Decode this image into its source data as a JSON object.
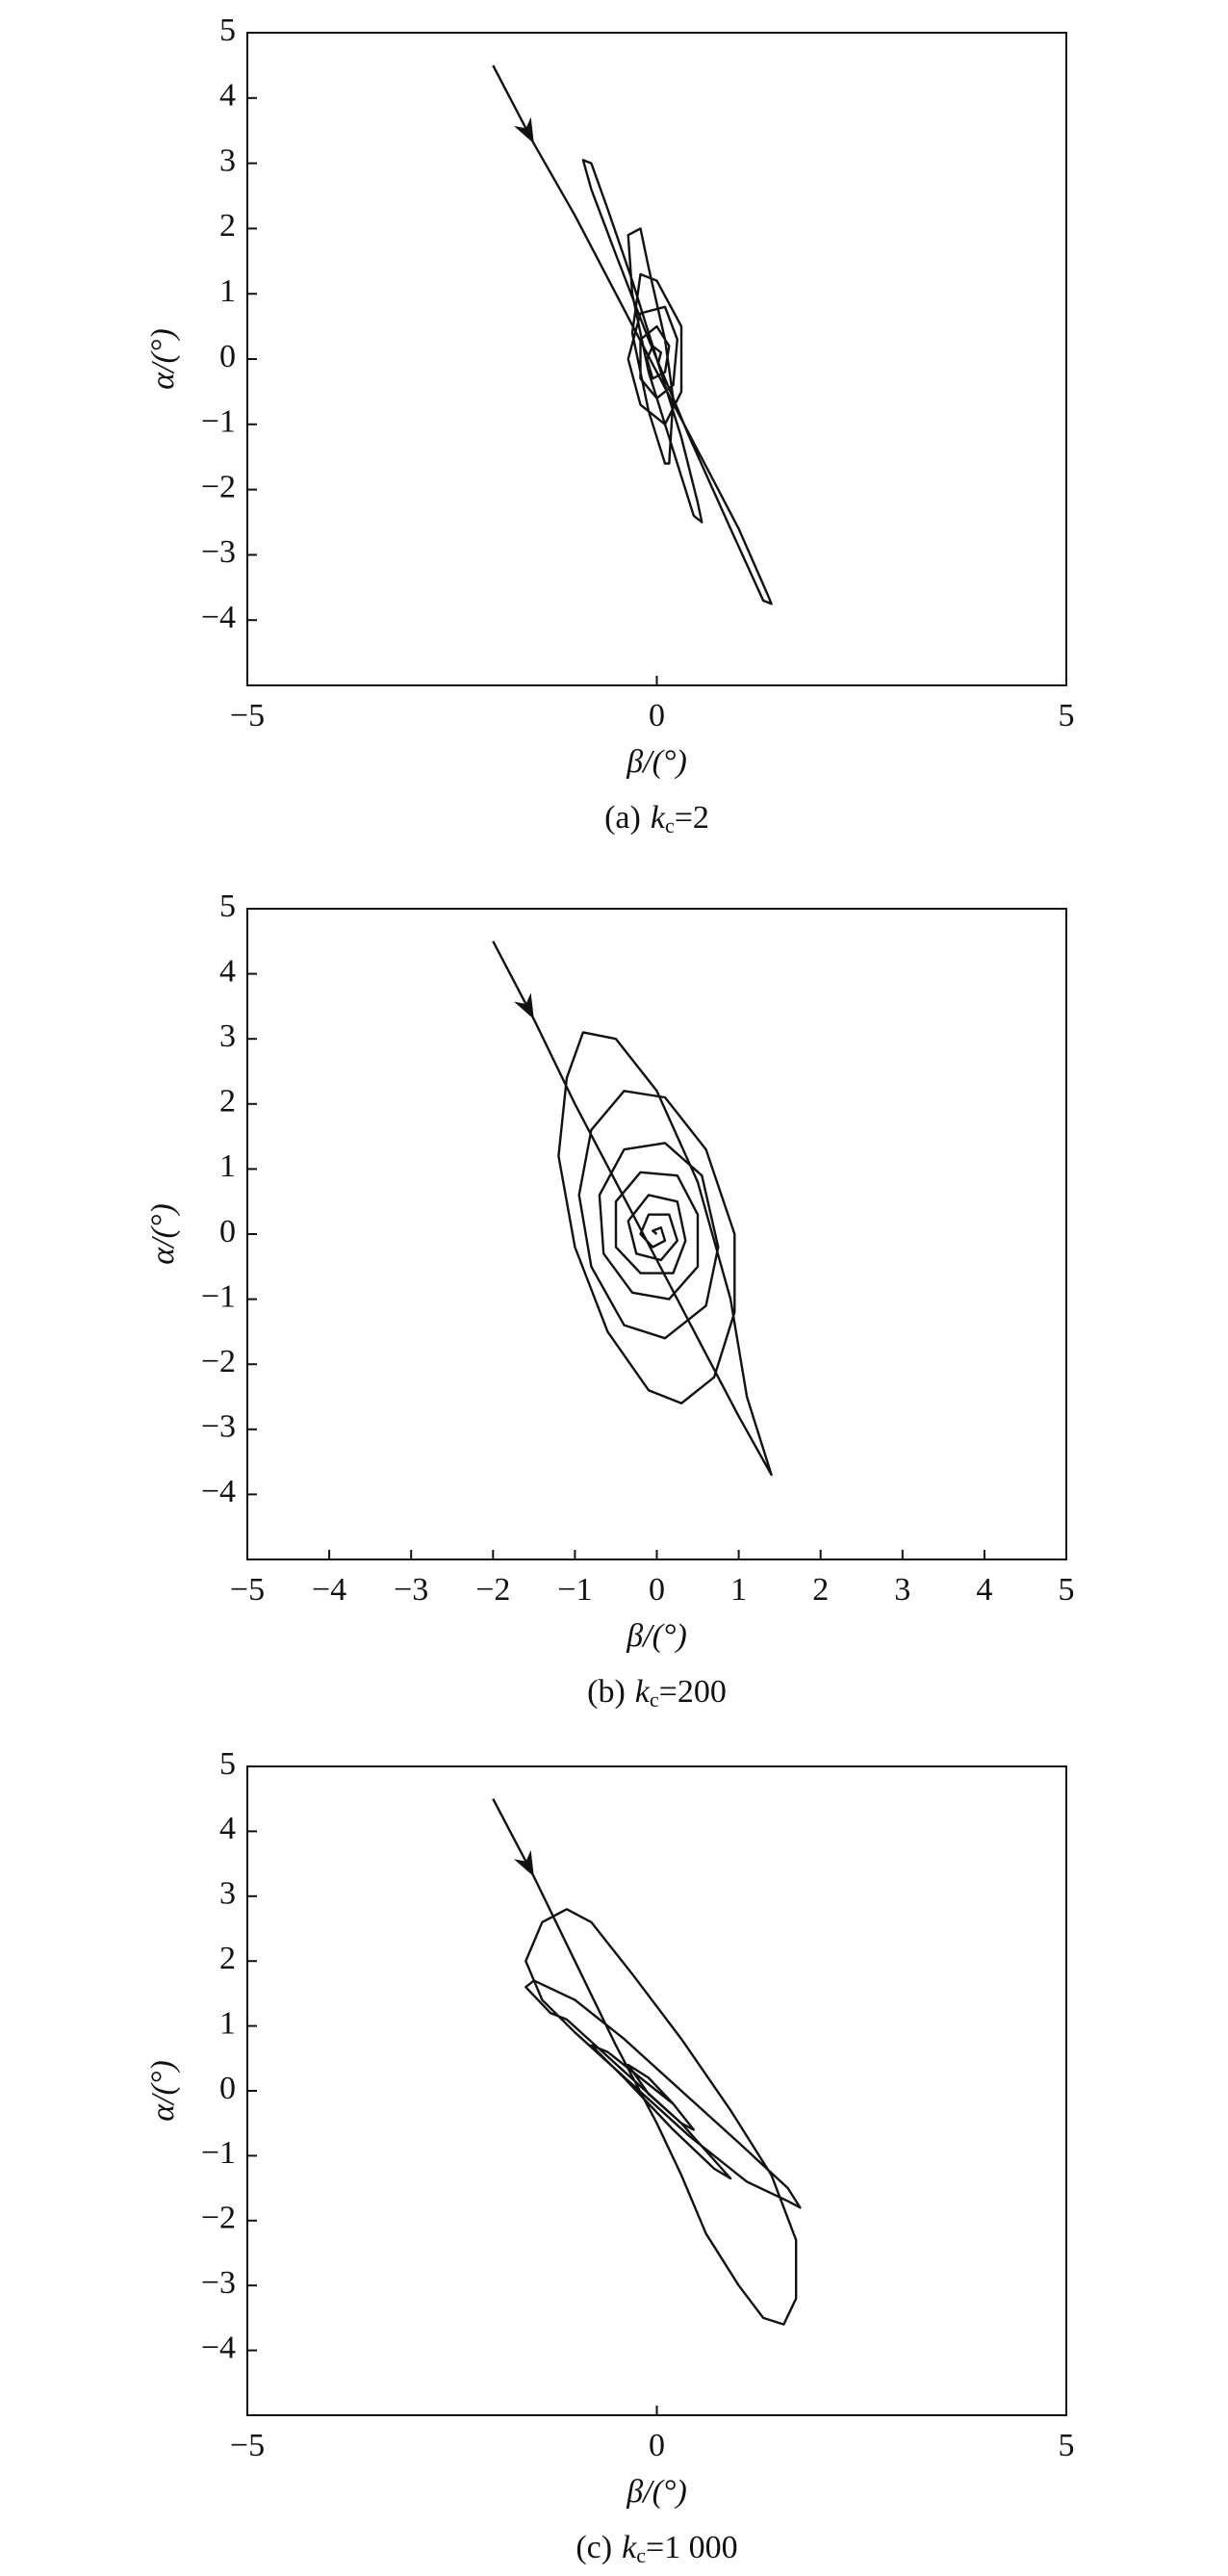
{
  "chart_data": [
    {
      "type": "line",
      "xlabel": "β/(°)",
      "ylabel": "α/(°)",
      "caption": {
        "prefix": "(a)",
        "symbol": "k",
        "subscript": "c",
        "suffix": "=2"
      },
      "xlim": [
        -5,
        5
      ],
      "ylim": [
        -5,
        5
      ],
      "xticks": [
        {
          "value": -5,
          "label": "−5"
        },
        0,
        5
      ],
      "yticks": [
        {
          "value": -4,
          "label": "−4"
        },
        {
          "value": -3,
          "label": "−3"
        },
        {
          "value": -2,
          "label": "−2"
        },
        {
          "value": -1,
          "label": "−1"
        },
        0,
        1,
        2,
        3,
        4,
        5
      ],
      "series": [
        {
          "color": "#111111",
          "x": [
            -2.0,
            -1.5,
            -1.0,
            -0.5,
            0,
            0.5,
            1.0,
            1.35,
            1.4,
            1.3,
            0.9,
            0.4,
            -0.1,
            -0.5,
            -0.8,
            -0.9,
            -0.8,
            -0.6,
            -0.3,
            0,
            0.3,
            0.5,
            0.55,
            0.45,
            0.2,
            -0.1,
            -0.3,
            -0.35,
            -0.2,
            -0.1,
            0.1,
            0.2,
            0.15,
            0.1,
            -0.1,
            -0.3,
            -0.2,
            0,
            0.3,
            0.3,
            0.1,
            -0.2,
            -0.35,
            -0.2,
            0.1,
            0.25,
            0.2,
            0,
            -0.2,
            -0.2,
            0,
            0.15,
            0.1,
            -0.05,
            -0.12,
            -0.05,
            0.05,
            0.02,
            0
          ],
          "values": [
            4.5,
            3.3,
            2.2,
            1.0,
            -0.2,
            -1.4,
            -2.6,
            -3.6,
            -3.75,
            -3.7,
            -2.6,
            -1.2,
            0.3,
            1.6,
            2.6,
            3.05,
            3.0,
            2.3,
            1.2,
            0,
            -1.2,
            -2.2,
            -2.5,
            -2.4,
            -1.4,
            -0.2,
            1.0,
            1.9,
            2.0,
            1.4,
            0.3,
            -0.6,
            -1.6,
            -1.6,
            -0.8,
            0.4,
            1.3,
            1.2,
            0.5,
            -0.5,
            -1.0,
            -0.7,
            0,
            0.7,
            0.8,
            0.3,
            -0.4,
            -0.6,
            -0.3,
            0.3,
            0.5,
            0.2,
            -0.2,
            -0.3,
            0,
            0.2,
            0.1,
            -0.05,
            0
          ]
        }
      ]
    },
    {
      "type": "line",
      "xlabel": "β/(°)",
      "ylabel": "α/(°)",
      "caption": {
        "prefix": "(b)",
        "symbol": "k",
        "subscript": "c",
        "suffix": "=200"
      },
      "xlim": [
        -5,
        5
      ],
      "ylim": [
        -5,
        5
      ],
      "xticks": [
        {
          "value": -5,
          "label": "−5"
        },
        {
          "value": -4,
          "label": "−4"
        },
        {
          "value": -3,
          "label": "−3"
        },
        {
          "value": -2,
          "label": "−2"
        },
        {
          "value": -1,
          "label": "−1"
        },
        0,
        1,
        2,
        3,
        4,
        5
      ],
      "yticks": [
        {
          "value": -4,
          "label": "−4"
        },
        {
          "value": -3,
          "label": "−3"
        },
        {
          "value": -2,
          "label": "−2"
        },
        {
          "value": -1,
          "label": "−1"
        },
        0,
        1,
        2,
        3,
        4,
        5
      ],
      "series": [
        {
          "color": "#111111",
          "x": [
            -2.0,
            -1.5,
            -1.0,
            -0.5,
            0,
            0.5,
            1.0,
            1.4,
            1.1,
            0.9,
            0.5,
            0,
            -0.5,
            -0.9,
            -1.1,
            -1.2,
            -1.0,
            -0.6,
            -0.1,
            0.3,
            0.7,
            0.95,
            0.95,
            0.6,
            0.1,
            -0.4,
            -0.8,
            -0.95,
            -0.8,
            -0.4,
            0.1,
            0.6,
            0.75,
            0.55,
            0.1,
            -0.4,
            -0.7,
            -0.65,
            -0.3,
            0.15,
            0.5,
            0.5,
            0.25,
            -0.2,
            -0.5,
            -0.5,
            -0.2,
            0.2,
            0.35,
            0.25,
            -0.1,
            -0.35,
            -0.25,
            0.05,
            0.25,
            0.15,
            -0.1,
            -0.2,
            -0.05,
            0.1,
            0.05,
            -0.05,
            0
          ],
          "values": [
            4.5,
            3.3,
            2.0,
            0.8,
            -0.4,
            -1.6,
            -2.8,
            -3.7,
            -2.5,
            -1.0,
            0.8,
            2.2,
            3.0,
            3.1,
            2.4,
            1.2,
            -0.2,
            -1.5,
            -2.4,
            -2.6,
            -2.2,
            -1.2,
            0,
            1.3,
            2.1,
            2.2,
            1.6,
            0.6,
            -0.5,
            -1.4,
            -1.6,
            -1.1,
            -0.2,
            0.9,
            1.4,
            1.3,
            0.6,
            -0.3,
            -0.9,
            -1.0,
            -0.5,
            0.3,
            0.9,
            0.95,
            0.5,
            -0.2,
            -0.6,
            -0.6,
            -0.1,
            0.5,
            0.6,
            0.2,
            -0.3,
            -0.4,
            -0.1,
            0.3,
            0.3,
            0,
            -0.2,
            -0.1,
            0.1,
            0.05,
            0
          ]
        }
      ]
    },
    {
      "type": "line",
      "xlabel": "β/(°)",
      "ylabel": "α/(°)",
      "caption": {
        "prefix": "(c)",
        "symbol": "k",
        "subscript": "c",
        "suffix": "=1 000"
      },
      "xlim": [
        -5,
        5
      ],
      "ylim": [
        -5,
        5
      ],
      "xticks": [
        {
          "value": -5,
          "label": "−5"
        },
        0,
        5
      ],
      "yticks": [
        {
          "value": -4,
          "label": "−4"
        },
        {
          "value": -3,
          "label": "−3"
        },
        {
          "value": -2,
          "label": "−2"
        },
        {
          "value": -1,
          "label": "−1"
        },
        0,
        1,
        2,
        3,
        4,
        5
      ],
      "series": [
        {
          "color": "#111111",
          "x": [
            -2.0,
            -1.5,
            -1.0,
            -0.5,
            0,
            0.3,
            0.6,
            1.0,
            1.3,
            1.55,
            1.7,
            1.7,
            1.4,
            0.9,
            0.3,
            -0.3,
            -0.8,
            -1.1,
            -1.4,
            -1.6,
            -1.4,
            -1.0,
            -0.3,
            0.4,
            1.1,
            1.6,
            1.75,
            1.6,
            1.0,
            0.3,
            -0.4,
            -1.0,
            -1.5,
            -1.6,
            -1.3,
            -1.1,
            -0.4,
            0.3,
            0.9,
            0.7,
            0.2,
            -0.4,
            -0.8,
            -0.6,
            -0.2,
            0.2,
            0.45,
            0.3,
            -0.1,
            -0.35,
            -0.1,
            0.2,
            0.1,
            0
          ],
          "values": [
            4.5,
            3.3,
            2.0,
            0.7,
            -0.5,
            -1.3,
            -2.2,
            -3.0,
            -3.5,
            -3.6,
            -3.2,
            -2.3,
            -1.3,
            -0.3,
            0.8,
            1.8,
            2.6,
            2.8,
            2.6,
            2.0,
            1.4,
            0.9,
            0.1,
            -0.7,
            -1.4,
            -1.7,
            -1.8,
            -1.5,
            -0.8,
            0,
            0.8,
            1.4,
            1.7,
            1.6,
            1.2,
            1.1,
            0.3,
            -0.5,
            -1.35,
            -1.2,
            -0.6,
            0.2,
            0.7,
            0.6,
            0.2,
            -0.2,
            -0.6,
            -0.5,
            -0.05,
            0.4,
            0.2,
            -0.2,
            -0.1,
            0
          ]
        }
      ]
    }
  ]
}
